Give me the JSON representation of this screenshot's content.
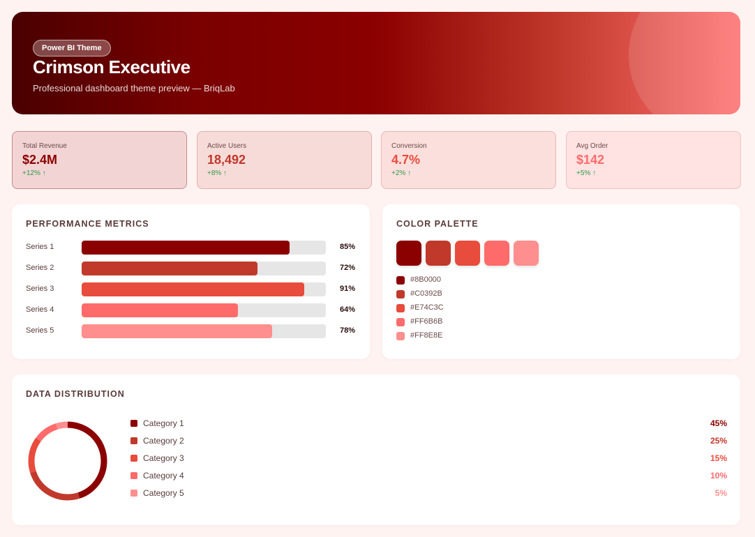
{
  "header": {
    "badge": "Power BI Theme",
    "title": "Crimson Executive",
    "subtitle": "Professional dashboard theme preview — BriqLab"
  },
  "kpis": [
    {
      "label": "Total Revenue",
      "value": "$2.4M",
      "delta": "+12% ↑",
      "color": "#8B0000",
      "bg": "#f2d4d4",
      "border": "#c98a8a"
    },
    {
      "label": "Active Users",
      "value": "18,492",
      "delta": "+8% ↑",
      "color": "#C0392B",
      "bg": "#f7dbd9",
      "border": "#e3b0ad"
    },
    {
      "label": "Conversion",
      "value": "4.7%",
      "delta": "+2% ↑",
      "color": "#E74C3C",
      "bg": "#fbdfdd",
      "border": "#eab7b3"
    },
    {
      "label": "Avg Order",
      "value": "$142",
      "delta": "+5% ↑",
      "color": "#FF6B6B",
      "bg": "#ffe2e2",
      "border": "#f1c0c0"
    }
  ],
  "performance": {
    "title": "PERFORMANCE METRICS",
    "rows": [
      {
        "label": "Series 1",
        "value": 85,
        "pct": "85%",
        "color": "#8B0000"
      },
      {
        "label": "Series 2",
        "value": 72,
        "pct": "72%",
        "color": "#C0392B"
      },
      {
        "label": "Series 3",
        "value": 91,
        "pct": "91%",
        "color": "#E74C3C"
      },
      {
        "label": "Series 4",
        "value": 64,
        "pct": "64%",
        "color": "#FF6B6B"
      },
      {
        "label": "Series 5",
        "value": 78,
        "pct": "78%",
        "color": "#FF8E8E"
      }
    ]
  },
  "palette": {
    "title": "COLOR PALETTE",
    "colors": [
      "#8B0000",
      "#C0392B",
      "#E74C3C",
      "#FF6B6B",
      "#FF8E8E"
    ],
    "codes": [
      "#8B0000",
      "#C0392B",
      "#E74C3C",
      "#FF6B6B",
      "#FF8E8E"
    ]
  },
  "distribution": {
    "title": "DATA DISTRIBUTION",
    "items": [
      {
        "label": "Category 1",
        "value": 45,
        "pct": "45%",
        "color": "#8B0000"
      },
      {
        "label": "Category 2",
        "value": 25,
        "pct": "25%",
        "color": "#C0392B"
      },
      {
        "label": "Category 3",
        "value": 15,
        "pct": "15%",
        "color": "#E74C3C"
      },
      {
        "label": "Category 4",
        "value": 10,
        "pct": "10%",
        "color": "#FF6B6B"
      },
      {
        "label": "Category 5",
        "value": 5,
        "pct": "5%",
        "color": "#FF8E8E"
      }
    ]
  }
}
